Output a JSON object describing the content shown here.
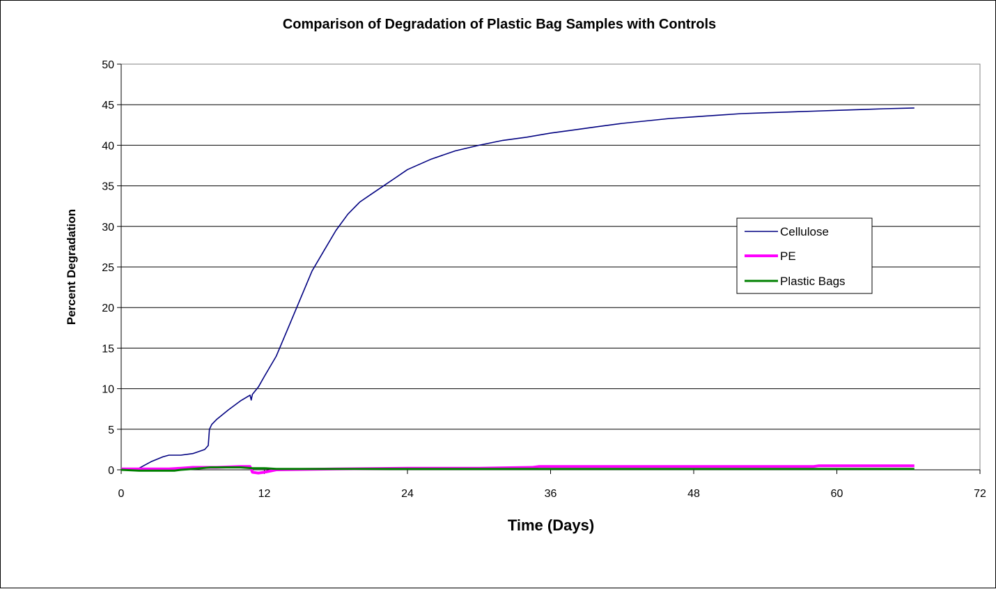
{
  "chart_data": {
    "type": "line",
    "title": "Comparison of Degradation of Plastic Bag Samples with Controls",
    "xlabel": "Time (Days)",
    "ylabel": "Percent Degradation",
    "xlim": [
      0,
      72
    ],
    "ylim": [
      0,
      50
    ],
    "x_ticks": [
      0,
      12,
      24,
      36,
      48,
      60,
      72
    ],
    "y_ticks": [
      0,
      5,
      10,
      15,
      20,
      25,
      30,
      35,
      40,
      45,
      50
    ],
    "grid": "horizontal",
    "legend_position": "right",
    "series": [
      {
        "name": "Cellulose",
        "color": "#000080",
        "x": [
          0,
          1.5,
          2.5,
          3.5,
          4,
          5,
          6,
          7,
          7.3,
          7.4,
          7.6,
          8,
          9,
          10,
          10.8,
          10.9,
          11,
          11.5,
          12,
          13,
          14,
          15,
          16,
          17,
          18,
          19,
          20,
          21,
          22,
          23,
          24,
          26,
          28,
          30,
          32,
          34,
          36,
          38,
          40,
          42,
          44,
          46,
          48,
          50,
          52,
          54,
          56,
          58,
          60,
          62,
          64,
          66.5
        ],
        "values": [
          0,
          0.2,
          1.0,
          1.6,
          1.8,
          1.8,
          2.0,
          2.5,
          3.0,
          5.0,
          5.6,
          6.2,
          7.4,
          8.5,
          9.2,
          8.6,
          9.3,
          10.2,
          11.5,
          14.0,
          17.5,
          21.0,
          24.5,
          27.0,
          29.5,
          31.5,
          33.0,
          34.0,
          35.0,
          36.0,
          37.0,
          38.3,
          39.3,
          40.0,
          40.6,
          41.0,
          41.5,
          41.9,
          42.3,
          42.7,
          43.0,
          43.3,
          43.5,
          43.7,
          43.9,
          44.0,
          44.1,
          44.2,
          44.3,
          44.4,
          44.5,
          44.6
        ]
      },
      {
        "name": "PE",
        "color": "#ff00ff",
        "x": [
          0,
          2,
          4,
          5,
          6,
          8,
          10,
          10.8,
          11,
          11.5,
          12,
          13,
          18,
          24,
          30,
          34.5,
          35,
          40,
          48,
          58,
          58.5,
          66.5
        ],
        "values": [
          0.1,
          0.1,
          0.1,
          0.2,
          0.3,
          0.3,
          0.4,
          0.4,
          -0.3,
          -0.4,
          -0.3,
          0.0,
          0.1,
          0.2,
          0.2,
          0.3,
          0.4,
          0.4,
          0.4,
          0.4,
          0.5,
          0.5
        ]
      },
      {
        "name": "Plastic Bags",
        "color": "#008000",
        "x": [
          0,
          1.5,
          3,
          4.5,
          5,
          6,
          7.5,
          8.5,
          10,
          11,
          12,
          13,
          18,
          24,
          30,
          36,
          48,
          60,
          66.5
        ],
        "values": [
          0.0,
          -0.1,
          -0.1,
          -0.1,
          0.0,
          0.1,
          0.3,
          0.3,
          0.3,
          0.2,
          0.2,
          0.1,
          0.1,
          0.1,
          0.1,
          0.1,
          0.1,
          0.1,
          0.1
        ]
      }
    ]
  }
}
